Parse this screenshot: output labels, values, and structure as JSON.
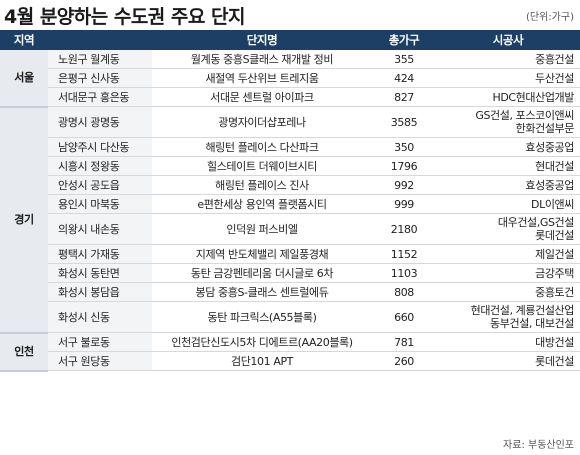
{
  "title": "4월 분양하는 수도권 주요 단지",
  "unit_note": "(단위:가구)",
  "headers": {
    "region": "지역",
    "location": "",
    "name": "단지명",
    "units": "총가구",
    "builder": "시공사"
  },
  "regions": [
    {
      "label": "서울",
      "rows": [
        {
          "location": "노원구 월계동",
          "name": "월계동 중흥S클래스 재개발 정비",
          "units": "355",
          "builder": [
            "중흥건설"
          ]
        },
        {
          "location": "은평구 신사동",
          "name": "새절역 두산위브 트레지움",
          "units": "424",
          "builder": [
            "두산건설"
          ]
        },
        {
          "location": "서대문구 홍은동",
          "name": "서대문 센트럴 아이파크",
          "units": "827",
          "builder": [
            "HDC현대산업개발"
          ]
        }
      ]
    },
    {
      "label": "경기",
      "rows": [
        {
          "location": "광명시 광명동",
          "name": "광명자이더샵포레나",
          "units": "3585",
          "builder": [
            "GS건설, 포스코이앤씨",
            "한화건설부문"
          ]
        },
        {
          "location": "남양주시 다산동",
          "name": "해링턴 플레이스 다산파크",
          "units": "350",
          "builder": [
            "효성중공업"
          ]
        },
        {
          "location": "시흥시 정왕동",
          "name": "힐스테이트 더웨이브시티",
          "units": "1796",
          "builder": [
            "현대건설"
          ]
        },
        {
          "location": "안성시 공도읍",
          "name": "해링턴 플레이스 진사",
          "units": "992",
          "builder": [
            "효성중공업"
          ]
        },
        {
          "location": "용인시 마북동",
          "name": "e편한세상 용인역 플랫폼시티",
          "units": "999",
          "builder": [
            "DL이앤씨"
          ]
        },
        {
          "location": "의왕시 내손동",
          "name": "인덕원 퍼스비엘",
          "units": "2180",
          "builder": [
            "대우건설,GS건설",
            "롯데건설"
          ]
        },
        {
          "location": "평택시 가재동",
          "name": "지제역 반도체밸리 제일풍경채",
          "units": "1152",
          "builder": [
            "제일건설"
          ]
        },
        {
          "location": "화성시 동탄면",
          "name": "동탄 금강펜테리움 더시글로 6차",
          "units": "1103",
          "builder": [
            "금강주택"
          ]
        },
        {
          "location": "화성시 봉담읍",
          "name": "봉담 중흥S-클래스 센트럴에듀",
          "units": "808",
          "builder": [
            "중흥토건"
          ]
        },
        {
          "location": "화성시 신동",
          "name": "동탄 파크릭스(A55블록)",
          "units": "660",
          "builder": [
            "현대건설, 계룡건설산업",
            "동부건설, 대보건설"
          ]
        }
      ]
    },
    {
      "label": "인천",
      "rows": [
        {
          "location": "서구 불로동",
          "name": "인천검단신도시5차 디에트르(AA20블록)",
          "units": "781",
          "builder": [
            "대방건설"
          ]
        },
        {
          "location": "서구 원당동",
          "name": "검단101 APT",
          "units": "260",
          "builder": [
            "롯데건설"
          ]
        }
      ]
    }
  ],
  "source": "자료: 부동산인포"
}
